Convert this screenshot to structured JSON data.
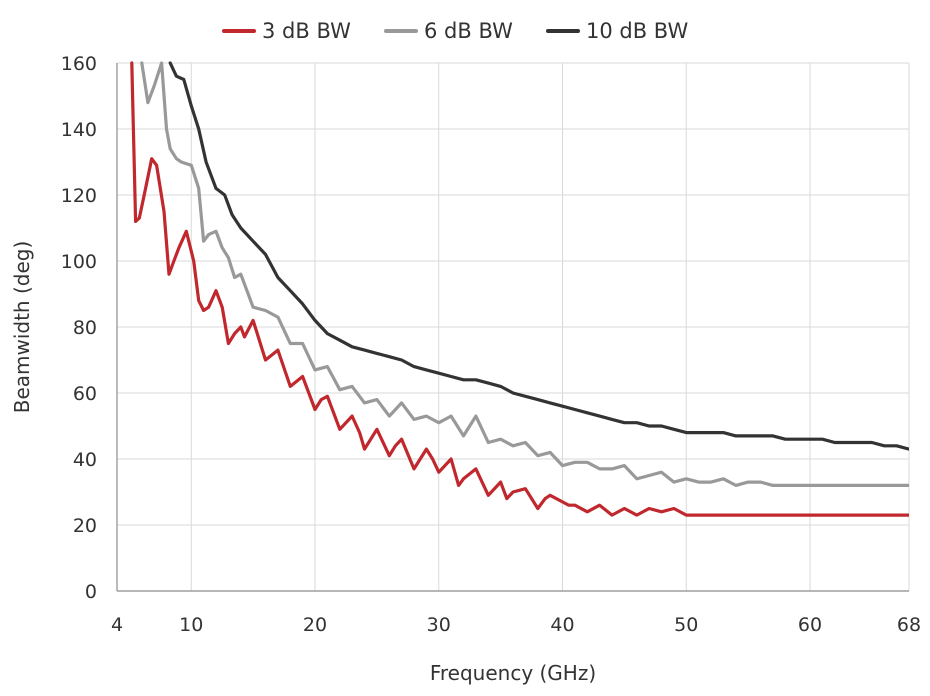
{
  "chart_data": {
    "type": "line",
    "xlabel": "Frequency (GHz)",
    "ylabel": "Beamwidth (deg)",
    "xlim": [
      4,
      68
    ],
    "ylim": [
      0,
      160
    ],
    "xticks": [
      4,
      10,
      20,
      30,
      40,
      50,
      60,
      68
    ],
    "yticks": [
      0,
      20,
      40,
      60,
      80,
      100,
      120,
      140,
      160
    ],
    "grid": true,
    "legend_position": "top-center",
    "series": [
      {
        "name": "3 dB BW",
        "color": "#c0282d",
        "x": [
          5.2,
          5.5,
          5.8,
          6.2,
          6.8,
          7.2,
          7.8,
          8.2,
          8.6,
          9.0,
          9.6,
          10.2,
          10.6,
          11.0,
          11.4,
          12.0,
          12.5,
          13.0,
          13.5,
          14.0,
          14.3,
          15.0,
          16.0,
          17.0,
          18.0,
          19.0,
          20.0,
          20.5,
          21.0,
          22.0,
          23.0,
          23.6,
          24.0,
          25.0,
          26.0,
          26.5,
          27.0,
          28.0,
          29.0,
          29.5,
          30.0,
          31.0,
          31.6,
          32.0,
          33.0,
          34.0,
          35.0,
          35.5,
          36.0,
          37.0,
          38.0,
          38.6,
          39.0,
          40.0,
          40.5,
          41.0,
          42.0,
          43.0,
          44.0,
          45.0,
          46.0,
          47.0,
          48.0,
          49.0,
          50.0,
          51.0,
          52.0,
          53.0,
          54.0,
          55.0,
          56.0,
          57.0,
          58.0,
          59.0,
          60.0,
          61.0,
          62.0,
          63.0,
          64.0,
          65.0,
          66.0,
          67.0,
          68.0
        ],
        "values": [
          160,
          112,
          113,
          120,
          131,
          129,
          115,
          96,
          100,
          104,
          109,
          100,
          88,
          85,
          86,
          91,
          86,
          75,
          78,
          80,
          77,
          82,
          70,
          73,
          62,
          65,
          55,
          58,
          59,
          49,
          53,
          48,
          43,
          49,
          41,
          44,
          46,
          37,
          43,
          40,
          36,
          40,
          32,
          34,
          37,
          29,
          33,
          28,
          30,
          31,
          25,
          28,
          29,
          27,
          26,
          26,
          24,
          26,
          23,
          25,
          23,
          25,
          24,
          25,
          23,
          23,
          23,
          23,
          23,
          23,
          23,
          23,
          23,
          23,
          23,
          23,
          23,
          23,
          23,
          23,
          23,
          23,
          23
        ],
        "label_note": ""
      },
      {
        "name": "6 dB BW",
        "color": "#999999",
        "x": [
          6.0,
          6.5,
          7.0,
          7.6,
          8.0,
          8.3,
          8.8,
          9.2,
          10.0,
          10.6,
          11.0,
          11.4,
          12.0,
          12.5,
          13.0,
          13.5,
          14.0,
          15.0,
          16.0,
          17.0,
          18.0,
          19.0,
          20.0,
          21.0,
          22.0,
          23.0,
          24.0,
          25.0,
          26.0,
          27.0,
          28.0,
          29.0,
          30.0,
          31.0,
          32.0,
          33.0,
          34.0,
          35.0,
          36.0,
          37.0,
          38.0,
          39.0,
          40.0,
          41.0,
          42.0,
          43.0,
          44.0,
          45.0,
          46.0,
          47.0,
          48.0,
          49.0,
          50.0,
          51.0,
          52.0,
          53.0,
          54.0,
          55.0,
          56.0,
          57.0,
          58.0,
          59.0,
          60.0,
          61.0,
          62.0,
          63.0,
          64.0,
          65.0,
          66.0,
          67.0,
          68.0
        ],
        "values": [
          160,
          148,
          153,
          160,
          140,
          134,
          131,
          130,
          129,
          122,
          106,
          108,
          109,
          104,
          101,
          95,
          96,
          86,
          85,
          83,
          75,
          75,
          67,
          68,
          61,
          62,
          57,
          58,
          53,
          57,
          52,
          53,
          51,
          53,
          47,
          53,
          45,
          46,
          44,
          45,
          41,
          42,
          38,
          39,
          39,
          37,
          37,
          38,
          34,
          35,
          36,
          33,
          34,
          33,
          33,
          34,
          32,
          33,
          33,
          32,
          32,
          32,
          32,
          32,
          32,
          32,
          32,
          32,
          32,
          32,
          32
        ],
        "label_note": ""
      },
      {
        "name": "10 dB BW",
        "color": "#333333",
        "x": [
          8.3,
          8.8,
          9.4,
          10.0,
          10.6,
          11.2,
          12.0,
          12.7,
          13.3,
          14.0,
          15.0,
          16.0,
          17.0,
          18.0,
          19.0,
          20.0,
          21.0,
          22.0,
          23.0,
          24.0,
          25.0,
          26.0,
          27.0,
          28.0,
          29.0,
          30.0,
          31.0,
          32.0,
          33.0,
          34.0,
          35.0,
          36.0,
          37.0,
          38.0,
          39.0,
          40.0,
          41.0,
          42.0,
          43.0,
          44.0,
          45.0,
          46.0,
          47.0,
          48.0,
          49.0,
          50.0,
          51.0,
          52.0,
          53.0,
          54.0,
          55.0,
          56.0,
          57.0,
          58.0,
          59.0,
          60.0,
          61.0,
          62.0,
          63.0,
          64.0,
          65.0,
          66.0,
          67.0,
          68.0
        ],
        "values": [
          160,
          156,
          155,
          147,
          140,
          130,
          122,
          120,
          114,
          110,
          106,
          102,
          95,
          91,
          87,
          82,
          78,
          76,
          74,
          73,
          72,
          71,
          70,
          68,
          67,
          66,
          65,
          64,
          64,
          63,
          62,
          60,
          59,
          58,
          57,
          56,
          55,
          54,
          53,
          52,
          51,
          51,
          50,
          50,
          49,
          48,
          48,
          48,
          48,
          47,
          47,
          47,
          47,
          46,
          46,
          46,
          46,
          45,
          45,
          45,
          45,
          44,
          44,
          43
        ],
        "label_note": ""
      }
    ]
  }
}
